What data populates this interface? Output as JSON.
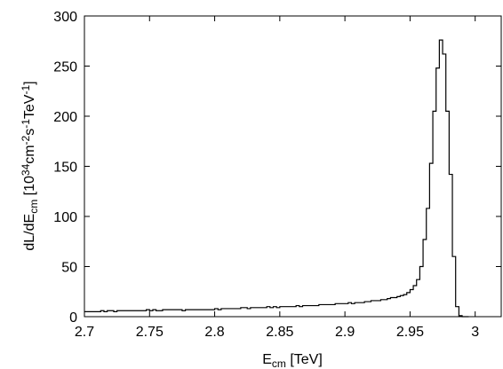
{
  "chart_data": {
    "type": "line",
    "style": "step-histogram",
    "xlabel": {
      "base": "E",
      "sub": "cm",
      "rest": " [TeV]"
    },
    "ylabel": {
      "parts": [
        {
          "t": "dL/dE",
          "k": "n"
        },
        {
          "t": "cm",
          "k": "sub"
        },
        {
          "t": " [10",
          "k": "n"
        },
        {
          "t": "34",
          "k": "sup"
        },
        {
          "t": "cm",
          "k": "n"
        },
        {
          "t": "-2",
          "k": "sup"
        },
        {
          "t": "s",
          "k": "n"
        },
        {
          "t": "-1",
          "k": "sup"
        },
        {
          "t": "TeV",
          "k": "n"
        },
        {
          "t": "-1",
          "k": "sup"
        },
        {
          "t": "]",
          "k": "n"
        }
      ]
    },
    "xlim": [
      2.7,
      3.02
    ],
    "ylim": [
      0,
      300
    ],
    "xticks": [
      2.7,
      2.75,
      2.8,
      2.85,
      2.9,
      2.95,
      3
    ],
    "xtick_labels": [
      "2.7",
      "2.75",
      "2.8",
      "2.85",
      "2.9",
      "2.95",
      "3"
    ],
    "yticks": [
      0,
      50,
      100,
      150,
      200,
      250,
      300
    ],
    "ytick_labels": [
      "0",
      "50",
      "100",
      "150",
      "200",
      "250",
      "300"
    ],
    "grid": false,
    "legend": "none",
    "line_color": "#000000",
    "bin_width": 0.0025,
    "x_start": 2.7,
    "values": [
      5,
      5,
      5,
      5,
      5,
      6,
      5,
      6,
      6,
      5,
      6,
      6,
      6,
      6,
      6,
      6,
      6,
      6,
      6,
      7,
      6,
      7,
      6,
      6,
      7,
      7,
      7,
      7,
      7,
      7,
      6,
      7,
      7,
      7,
      7,
      7,
      7,
      7,
      7,
      7,
      8,
      7,
      8,
      8,
      8,
      8,
      8,
      8,
      9,
      9,
      8,
      9,
      9,
      9,
      9,
      9,
      10,
      9,
      10,
      9,
      10,
      10,
      10,
      10,
      10,
      11,
      10,
      11,
      11,
      11,
      11,
      11,
      12,
      12,
      12,
      12,
      12,
      13,
      13,
      13,
      13,
      14,
      13,
      14,
      14,
      14,
      15,
      15,
      16,
      16,
      16,
      17,
      17,
      18,
      19,
      19,
      20,
      21,
      22,
      24,
      27,
      31,
      37,
      50,
      77,
      108,
      153,
      205,
      248,
      276,
      262,
      205,
      142,
      60,
      10,
      1,
      0,
      0
    ]
  }
}
